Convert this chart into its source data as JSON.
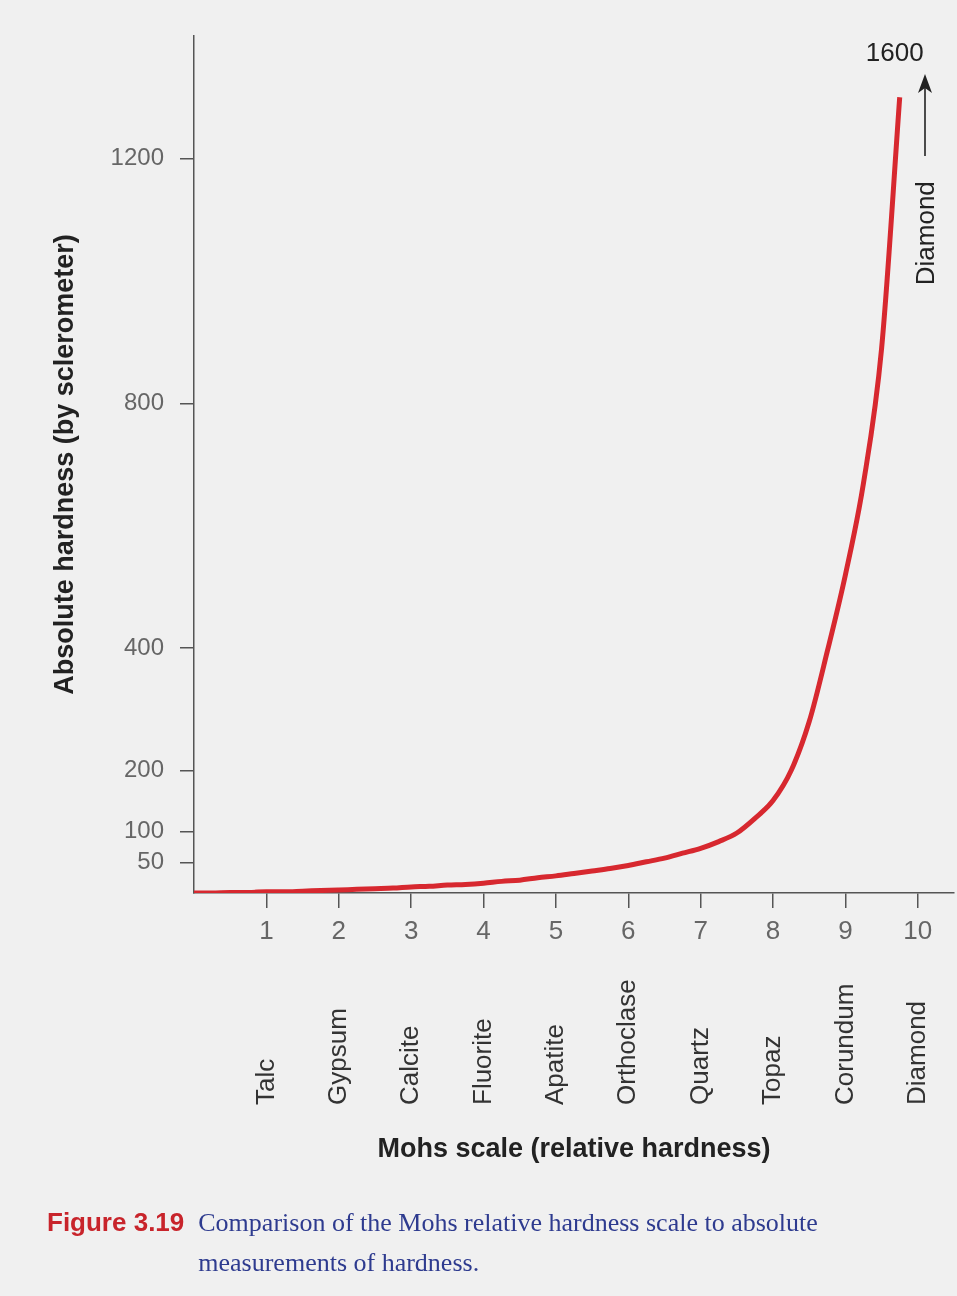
{
  "chart_data": {
    "type": "line",
    "xlabel": "Mohs scale (relative hardness)",
    "ylabel": "Absolute hardness (by sclerometer)",
    "categories": [
      null,
      null,
      null,
      null,
      "Talc",
      null,
      null,
      null,
      "Gypsum",
      null,
      null,
      null,
      "Calcite",
      null,
      null,
      null,
      "Fluorite",
      null,
      null,
      null,
      "Apatite",
      null,
      null,
      null,
      "Orthoclase",
      null,
      null,
      null,
      "Quartz",
      null,
      null,
      null,
      "Topaz",
      null,
      null,
      null,
      "Corundum",
      null,
      null,
      null,
      "Diamond",
      null,
      null
    ],
    "x2lim": [
      0,
      10.5
    ],
    "x2ticks": [
      1,
      2,
      3,
      4,
      5,
      6,
      7,
      8,
      9,
      10
    ],
    "ylim": [
      0,
      1400
    ],
    "yticks": [
      50,
      100,
      200,
      400,
      800,
      1200
    ],
    "series": [
      {
        "color": "#d7282f",
        "values": [
          0,
          0,
          1,
          1,
          2,
          2,
          3,
          4,
          5,
          6,
          7,
          8,
          10,
          11,
          13,
          14,
          16,
          19,
          21,
          25,
          28,
          32,
          36,
          40,
          45,
          51,
          57,
          65,
          73,
          84,
          98,
          122,
          151,
          200,
          280,
          395,
          520,
          670,
          890,
          1300,
          null,
          null,
          null
        ]
      }
    ],
    "annotations": [
      "1600",
      "Diamond",
      "Figure 3.19",
      "Comparison of the Mohs relative hardness scale to absolute measurements of hardness."
    ]
  }
}
